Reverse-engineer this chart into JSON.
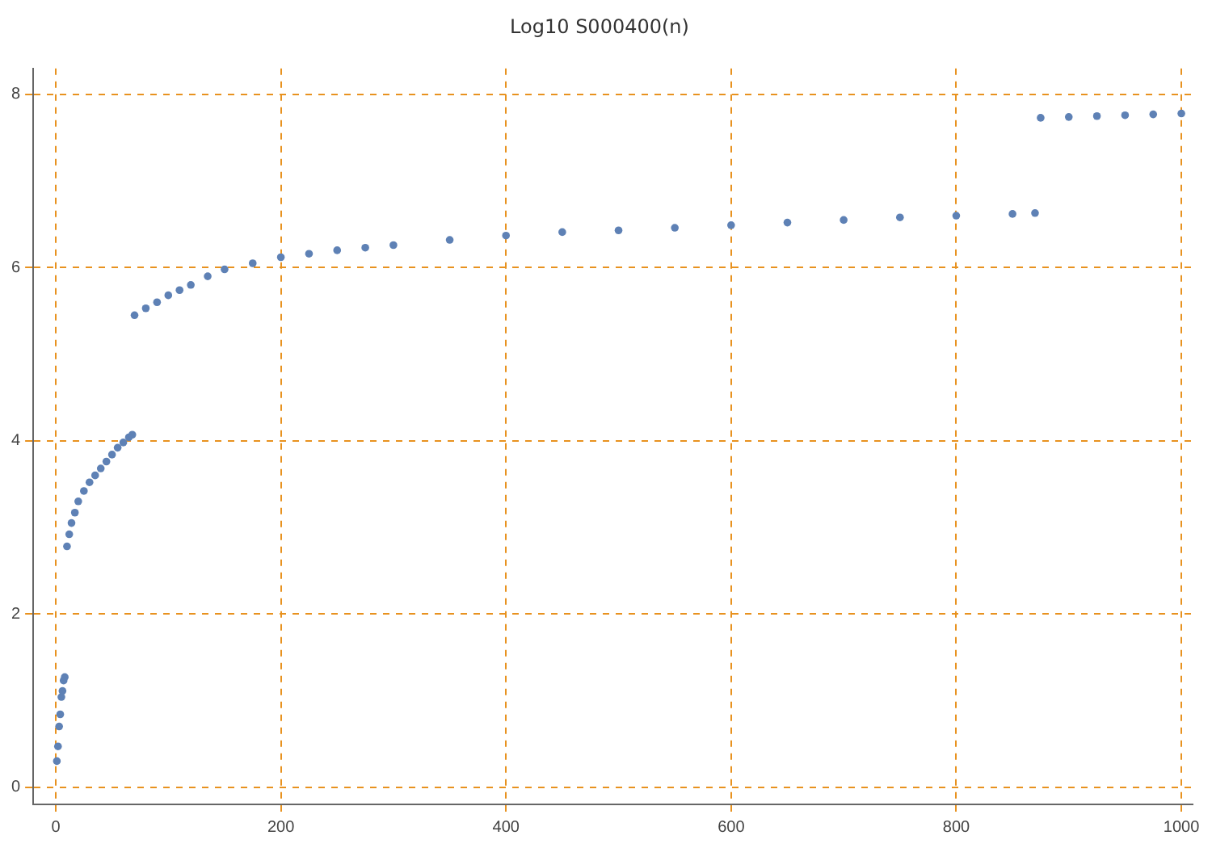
{
  "chart_data": {
    "type": "scatter",
    "title": "Log10 S000400(n)",
    "x": [
      1,
      2,
      3,
      4,
      5,
      6,
      7,
      8,
      10,
      12,
      14,
      17,
      20,
      25,
      30,
      35,
      40,
      45,
      50,
      55,
      60,
      65,
      68,
      70,
      80,
      90,
      100,
      110,
      120,
      135,
      150,
      175,
      200,
      225,
      250,
      275,
      300,
      350,
      400,
      450,
      500,
      550,
      600,
      650,
      700,
      750,
      800,
      850,
      870,
      875,
      900,
      925,
      950,
      975,
      1000
    ],
    "series": [
      {
        "color": "#5e81b5",
        "values": [
          0.3,
          0.47,
          0.7,
          0.84,
          1.04,
          1.11,
          1.23,
          1.27,
          2.78,
          2.92,
          3.05,
          3.17,
          3.3,
          3.42,
          3.52,
          3.6,
          3.68,
          3.76,
          3.84,
          3.92,
          3.98,
          4.04,
          4.07,
          5.45,
          5.53,
          5.6,
          5.68,
          5.74,
          5.8,
          5.9,
          5.98,
          6.05,
          6.12,
          6.16,
          6.2,
          6.23,
          6.26,
          6.32,
          6.37,
          6.41,
          6.43,
          6.46,
          6.49,
          6.52,
          6.55,
          6.58,
          6.6,
          6.62,
          6.63,
          7.73,
          7.74,
          7.75,
          7.76,
          7.77,
          7.78
        ]
      }
    ],
    "xlim": [
      -20,
      1010
    ],
    "xticks": [
      0,
      200,
      400,
      600,
      800,
      1000
    ],
    "ylim": [
      -0.2,
      8.3
    ],
    "yticks": [
      0,
      2,
      4,
      6,
      8
    ],
    "grid": true,
    "line_style": "dashed",
    "marker": "circle",
    "legend": false
  }
}
